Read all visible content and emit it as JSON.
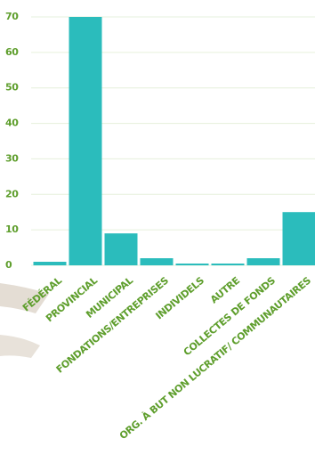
{
  "chart_data": {
    "type": "bar",
    "categories": [
      "FÉDÉRAL",
      "PROVINCIAL",
      "MUNICIPAL",
      "FONDATIONS/ENTREPRISES",
      "INDIVIDELS",
      "AUTRE",
      "COLLECTES DE FONDS",
      "ORG. À BUT NON LUCRATIF/ COMMUNAUTAIRES"
    ],
    "values": [
      1,
      70,
      9,
      2,
      0.5,
      0.5,
      2,
      15
    ],
    "color": "#2bbcbc",
    "ylim": [
      0,
      70
    ],
    "yticks": [
      0,
      10,
      20,
      30,
      40,
      50,
      60,
      70
    ],
    "grid": true
  }
}
